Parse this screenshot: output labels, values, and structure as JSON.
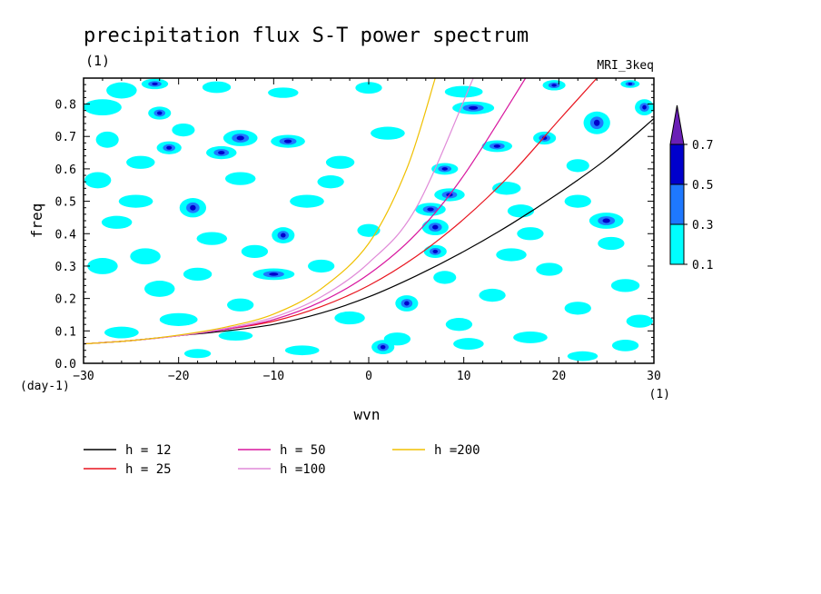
{
  "chart_data": {
    "type": "heatmap",
    "title": "precipitation flux S-T power spectrum",
    "subtitle_left": "(1)",
    "subtitle_right": "MRI_3keq",
    "xlabel": "wvn",
    "ylabel": "freq",
    "x_unit_label": "(1)",
    "y_unit_label": "(day-1)",
    "xlim": [
      -30,
      30
    ],
    "ylim": [
      0,
      0.88
    ],
    "xticks": [
      -30,
      -20,
      -10,
      0,
      10,
      20,
      30
    ],
    "yticks": [
      0.0,
      0.1,
      0.2,
      0.3,
      0.4,
      0.5,
      0.6,
      0.7,
      0.8
    ],
    "colorbar": {
      "levels": [
        0.1,
        0.3,
        0.5,
        0.7
      ],
      "colors": [
        "#00ffff",
        "#1e78ff",
        "#0000cc",
        "#6a1fb6"
      ]
    },
    "blobs": [
      {
        "x": -26.0,
        "y": 0.842,
        "rx": 1.6,
        "ry": 0.025,
        "level": 0
      },
      {
        "x": -22.5,
        "y": 0.862,
        "rx": 1.4,
        "ry": 0.016,
        "level": 1
      },
      {
        "x": -16.0,
        "y": 0.852,
        "rx": 1.5,
        "ry": 0.018,
        "level": 0
      },
      {
        "x": -9.0,
        "y": 0.835,
        "rx": 1.6,
        "ry": 0.016,
        "level": 0
      },
      {
        "x": 0.0,
        "y": 0.85,
        "rx": 1.4,
        "ry": 0.018,
        "level": 0
      },
      {
        "x": 10.0,
        "y": 0.838,
        "rx": 2.0,
        "ry": 0.018,
        "level": 0
      },
      {
        "x": 19.5,
        "y": 0.858,
        "rx": 1.2,
        "ry": 0.016,
        "level": 1
      },
      {
        "x": 27.5,
        "y": 0.862,
        "rx": 1.0,
        "ry": 0.012,
        "level": 1
      },
      {
        "x": -28.0,
        "y": 0.79,
        "rx": 2.0,
        "ry": 0.025,
        "level": 0
      },
      {
        "x": -22.0,
        "y": 0.772,
        "rx": 1.2,
        "ry": 0.02,
        "level": 1
      },
      {
        "x": 11.0,
        "y": 0.788,
        "rx": 2.2,
        "ry": 0.02,
        "level": 1
      },
      {
        "x": 29.0,
        "y": 0.79,
        "rx": 1.0,
        "ry": 0.025,
        "level": 1
      },
      {
        "x": -19.5,
        "y": 0.72,
        "rx": 1.2,
        "ry": 0.02,
        "level": 0
      },
      {
        "x": -13.5,
        "y": 0.695,
        "rx": 1.8,
        "ry": 0.025,
        "level": 1
      },
      {
        "x": -8.5,
        "y": 0.685,
        "rx": 1.8,
        "ry": 0.02,
        "level": 1
      },
      {
        "x": 2.0,
        "y": 0.71,
        "rx": 1.8,
        "ry": 0.02,
        "level": 0
      },
      {
        "x": 13.5,
        "y": 0.67,
        "rx": 1.6,
        "ry": 0.018,
        "level": 1
      },
      {
        "x": 18.5,
        "y": 0.695,
        "rx": 1.2,
        "ry": 0.02,
        "level": 1
      },
      {
        "x": 24.0,
        "y": 0.742,
        "rx": 1.4,
        "ry": 0.035,
        "level": 1
      },
      {
        "x": -21.0,
        "y": 0.665,
        "rx": 1.3,
        "ry": 0.02,
        "level": 1
      },
      {
        "x": -15.5,
        "y": 0.65,
        "rx": 1.6,
        "ry": 0.02,
        "level": 1
      },
      {
        "x": -27.5,
        "y": 0.69,
        "rx": 1.2,
        "ry": 0.025,
        "level": 0
      },
      {
        "x": -24.0,
        "y": 0.62,
        "rx": 1.5,
        "ry": 0.02,
        "level": 0
      },
      {
        "x": -3.0,
        "y": 0.62,
        "rx": 1.5,
        "ry": 0.02,
        "level": 0
      },
      {
        "x": 8.0,
        "y": 0.6,
        "rx": 1.4,
        "ry": 0.018,
        "level": 1
      },
      {
        "x": 22.0,
        "y": 0.61,
        "rx": 1.2,
        "ry": 0.02,
        "level": 0
      },
      {
        "x": -28.5,
        "y": 0.565,
        "rx": 1.4,
        "ry": 0.025,
        "level": 0
      },
      {
        "x": -13.5,
        "y": 0.57,
        "rx": 1.6,
        "ry": 0.02,
        "level": 0
      },
      {
        "x": -4.0,
        "y": 0.56,
        "rx": 1.4,
        "ry": 0.02,
        "level": 0
      },
      {
        "x": 8.5,
        "y": 0.52,
        "rx": 1.6,
        "ry": 0.02,
        "level": 1
      },
      {
        "x": 14.5,
        "y": 0.54,
        "rx": 1.5,
        "ry": 0.02,
        "level": 0
      },
      {
        "x": -24.5,
        "y": 0.5,
        "rx": 1.8,
        "ry": 0.02,
        "level": 0
      },
      {
        "x": -18.5,
        "y": 0.48,
        "rx": 1.4,
        "ry": 0.03,
        "level": 1
      },
      {
        "x": -6.5,
        "y": 0.5,
        "rx": 1.8,
        "ry": 0.02,
        "level": 0
      },
      {
        "x": 6.5,
        "y": 0.475,
        "rx": 1.6,
        "ry": 0.02,
        "level": 1
      },
      {
        "x": 16.0,
        "y": 0.47,
        "rx": 1.4,
        "ry": 0.02,
        "level": 0
      },
      {
        "x": 25.0,
        "y": 0.44,
        "rx": 1.8,
        "ry": 0.025,
        "level": 1
      },
      {
        "x": 22.0,
        "y": 0.5,
        "rx": 1.4,
        "ry": 0.02,
        "level": 0
      },
      {
        "x": -26.5,
        "y": 0.435,
        "rx": 1.6,
        "ry": 0.02,
        "level": 0
      },
      {
        "x": -9.0,
        "y": 0.395,
        "rx": 1.2,
        "ry": 0.025,
        "level": 1
      },
      {
        "x": 7.0,
        "y": 0.42,
        "rx": 1.4,
        "ry": 0.025,
        "level": 1
      },
      {
        "x": 17.0,
        "y": 0.4,
        "rx": 1.4,
        "ry": 0.02,
        "level": 0
      },
      {
        "x": -16.5,
        "y": 0.385,
        "rx": 1.6,
        "ry": 0.02,
        "level": 0
      },
      {
        "x": 0.0,
        "y": 0.41,
        "rx": 1.2,
        "ry": 0.02,
        "level": 0
      },
      {
        "x": 25.5,
        "y": 0.37,
        "rx": 1.4,
        "ry": 0.02,
        "level": 0
      },
      {
        "x": -23.5,
        "y": 0.33,
        "rx": 1.6,
        "ry": 0.025,
        "level": 0
      },
      {
        "x": -12.0,
        "y": 0.345,
        "rx": 1.4,
        "ry": 0.02,
        "level": 0
      },
      {
        "x": 7.0,
        "y": 0.345,
        "rx": 1.2,
        "ry": 0.02,
        "level": 1
      },
      {
        "x": 15.0,
        "y": 0.335,
        "rx": 1.6,
        "ry": 0.02,
        "level": 0
      },
      {
        "x": -28.0,
        "y": 0.3,
        "rx": 1.6,
        "ry": 0.025,
        "level": 0
      },
      {
        "x": -18.0,
        "y": 0.275,
        "rx": 1.5,
        "ry": 0.02,
        "level": 0
      },
      {
        "x": -10.0,
        "y": 0.275,
        "rx": 2.2,
        "ry": 0.018,
        "level": 1
      },
      {
        "x": -5.0,
        "y": 0.3,
        "rx": 1.4,
        "ry": 0.02,
        "level": 0
      },
      {
        "x": 8.0,
        "y": 0.265,
        "rx": 1.2,
        "ry": 0.02,
        "level": 0
      },
      {
        "x": 19.0,
        "y": 0.29,
        "rx": 1.4,
        "ry": 0.02,
        "level": 0
      },
      {
        "x": 27.0,
        "y": 0.24,
        "rx": 1.5,
        "ry": 0.02,
        "level": 0
      },
      {
        "x": -22.0,
        "y": 0.23,
        "rx": 1.6,
        "ry": 0.025,
        "level": 0
      },
      {
        "x": 4.0,
        "y": 0.185,
        "rx": 1.2,
        "ry": 0.025,
        "level": 1
      },
      {
        "x": 13.0,
        "y": 0.21,
        "rx": 1.4,
        "ry": 0.02,
        "level": 0
      },
      {
        "x": -13.5,
        "y": 0.18,
        "rx": 1.4,
        "ry": 0.02,
        "level": 0
      },
      {
        "x": 22.0,
        "y": 0.17,
        "rx": 1.4,
        "ry": 0.02,
        "level": 0
      },
      {
        "x": -20.0,
        "y": 0.135,
        "rx": 2.0,
        "ry": 0.02,
        "level": 0
      },
      {
        "x": -2.0,
        "y": 0.14,
        "rx": 1.6,
        "ry": 0.02,
        "level": 0
      },
      {
        "x": 9.5,
        "y": 0.12,
        "rx": 1.4,
        "ry": 0.02,
        "level": 0
      },
      {
        "x": 28.5,
        "y": 0.13,
        "rx": 1.4,
        "ry": 0.02,
        "level": 0
      },
      {
        "x": -26.0,
        "y": 0.095,
        "rx": 1.8,
        "ry": 0.018,
        "level": 0
      },
      {
        "x": -14.0,
        "y": 0.085,
        "rx": 1.8,
        "ry": 0.015,
        "level": 0
      },
      {
        "x": 17.0,
        "y": 0.08,
        "rx": 1.8,
        "ry": 0.018,
        "level": 0
      },
      {
        "x": 3.0,
        "y": 0.075,
        "rx": 1.4,
        "ry": 0.02,
        "level": 0
      },
      {
        "x": 1.5,
        "y": 0.05,
        "rx": 1.2,
        "ry": 0.022,
        "level": 1
      },
      {
        "x": 10.5,
        "y": 0.06,
        "rx": 1.6,
        "ry": 0.018,
        "level": 0
      },
      {
        "x": 27.0,
        "y": 0.055,
        "rx": 1.4,
        "ry": 0.018,
        "level": 0
      },
      {
        "x": -7.0,
        "y": 0.04,
        "rx": 1.8,
        "ry": 0.015,
        "level": 0
      },
      {
        "x": -18.0,
        "y": 0.03,
        "rx": 1.4,
        "ry": 0.014,
        "level": 0
      },
      {
        "x": 22.5,
        "y": 0.022,
        "rx": 1.6,
        "ry": 0.015,
        "level": 0
      }
    ],
    "series": [
      {
        "name": "h = 12",
        "color": "#000000",
        "x": [
          -30,
          -25,
          -20,
          -15,
          -10,
          -5,
          0,
          5,
          10,
          15,
          20,
          25,
          30
        ],
        "y": [
          0.06,
          0.07,
          0.085,
          0.1,
          0.12,
          0.155,
          0.205,
          0.27,
          0.345,
          0.43,
          0.525,
          0.63,
          0.755
        ]
      },
      {
        "name": "h = 25",
        "color": "#e8141e",
        "x": [
          -30,
          -25,
          -20,
          -15,
          -10,
          -5,
          0,
          5,
          10,
          15,
          20,
          24
        ],
        "y": [
          0.06,
          0.07,
          0.085,
          0.105,
          0.13,
          0.175,
          0.24,
          0.33,
          0.445,
          0.585,
          0.75,
          0.88
        ]
      },
      {
        "name": "h = 50",
        "color": "#d8169e",
        "x": [
          -30,
          -25,
          -20,
          -15,
          -10,
          -5,
          0,
          5,
          10,
          16.5
        ],
        "y": [
          0.06,
          0.07,
          0.085,
          0.105,
          0.135,
          0.19,
          0.275,
          0.4,
          0.58,
          0.88
        ]
      },
      {
        "name": "h =100",
        "color": "#e08ad8",
        "x": [
          -30,
          -25,
          -20,
          -15,
          -10,
          -5,
          0,
          5,
          11
        ],
        "y": [
          0.06,
          0.07,
          0.085,
          0.108,
          0.142,
          0.205,
          0.31,
          0.48,
          0.88
        ]
      },
      {
        "name": "h =200",
        "color": "#f0c000",
        "x": [
          -30,
          -25,
          -20,
          -15,
          -10,
          -5,
          0,
          4,
          7
        ],
        "y": [
          0.06,
          0.07,
          0.087,
          0.112,
          0.152,
          0.23,
          0.37,
          0.6,
          0.88
        ]
      }
    ]
  }
}
